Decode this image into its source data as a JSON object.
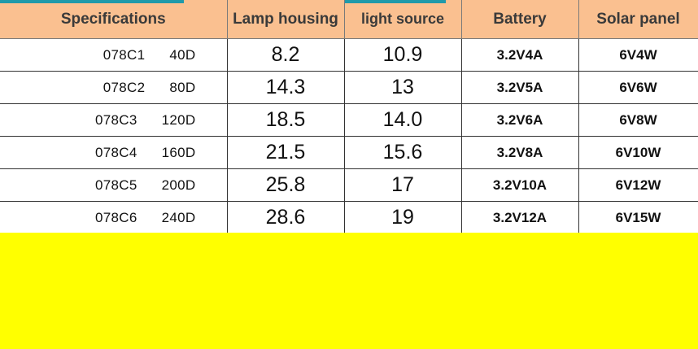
{
  "colors": {
    "header_bg": "#fac090",
    "accent_bar": "#1f9aaa",
    "yellow_area": "#ffff00"
  },
  "header": {
    "specifications": "Specifications",
    "lamp_housing": "Lamp housing",
    "light_source": "light source",
    "battery": "Battery",
    "solar_panel": "Solar panel"
  },
  "rows": [
    {
      "model": "078C1",
      "power": "40D",
      "lamp_housing": "8.2",
      "light_source": "10.9",
      "battery": "3.2V4A",
      "solar_panel": "6V4W"
    },
    {
      "model": "078C2",
      "power": "80D",
      "lamp_housing": "14.3",
      "light_source": "13",
      "battery": "3.2V5A",
      "solar_panel": "6V6W"
    },
    {
      "model": "078C3",
      "power": "120D",
      "lamp_housing": "18.5",
      "light_source": "14.0",
      "battery": "3.2V6A",
      "solar_panel": "6V8W"
    },
    {
      "model": "078C4",
      "power": "160D",
      "lamp_housing": "21.5",
      "light_source": "15.6",
      "battery": "3.2V8A",
      "solar_panel": "6V10W"
    },
    {
      "model": "078C5",
      "power": "200D",
      "lamp_housing": "25.8",
      "light_source": "17",
      "battery": "3.2V10A",
      "solar_panel": "6V12W"
    },
    {
      "model": "078C6",
      "power": "240D",
      "lamp_housing": "28.6",
      "light_source": "19",
      "battery": "3.2V12A",
      "solar_panel": "6V15W"
    }
  ]
}
